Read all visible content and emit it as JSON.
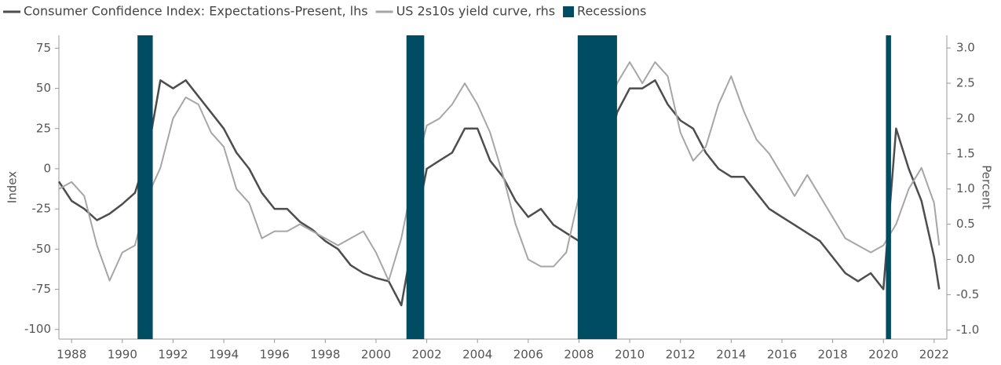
{
  "chart_data": {
    "type": "line",
    "x": [
      1987.5,
      1988.0,
      1988.5,
      1989.0,
      1989.5,
      1990.0,
      1990.5,
      1991.0,
      1991.5,
      1992.0,
      1992.5,
      1993.0,
      1993.5,
      1994.0,
      1994.5,
      1995.0,
      1995.5,
      1996.0,
      1996.5,
      1997.0,
      1997.5,
      1998.0,
      1998.5,
      1999.0,
      1999.5,
      2000.0,
      2000.5,
      2001.0,
      2001.5,
      2002.0,
      2002.5,
      2003.0,
      2003.5,
      2004.0,
      2004.5,
      2005.0,
      2005.5,
      2006.0,
      2006.5,
      2007.0,
      2007.5,
      2008.0,
      2008.5,
      2009.0,
      2009.5,
      2010.0,
      2010.5,
      2011.0,
      2011.5,
      2012.0,
      2012.5,
      2013.0,
      2013.5,
      2014.0,
      2014.5,
      2015.0,
      2015.5,
      2016.0,
      2016.5,
      2017.0,
      2017.5,
      2018.0,
      2018.5,
      2019.0,
      2019.5,
      2020.0,
      2020.5,
      2021.0,
      2021.5,
      2022.0,
      2022.2
    ],
    "series": [
      {
        "name": "Consumer Confidence Index: Expectations-Present, lhs",
        "color": "#4d4d4d",
        "axis": "y",
        "values": [
          -8,
          -20,
          -25,
          -32,
          -28,
          -22,
          -15,
          10,
          55,
          50,
          55,
          45,
          35,
          25,
          10,
          0,
          -15,
          -25,
          -25,
          -33,
          -38,
          -45,
          -50,
          -60,
          -65,
          -68,
          -70,
          -85,
          -40,
          0,
          5,
          10,
          25,
          25,
          5,
          -5,
          -20,
          -30,
          -25,
          -35,
          -40,
          -45,
          -15,
          0,
          35,
          50,
          50,
          55,
          40,
          30,
          25,
          10,
          0,
          -5,
          -5,
          -15,
          -25,
          -30,
          -35,
          -40,
          -45,
          -55,
          -65,
          -70,
          -65,
          -75,
          25,
          0,
          -20,
          -55,
          -75
        ]
      },
      {
        "name": "US 2s10s yield curve, rhs",
        "color": "#a6a6a6",
        "axis": "y2",
        "values": [
          1.0,
          1.1,
          0.9,
          0.2,
          -0.3,
          0.1,
          0.2,
          0.9,
          1.3,
          2.0,
          2.3,
          2.2,
          1.8,
          1.6,
          1.0,
          0.8,
          0.3,
          0.4,
          0.4,
          0.5,
          0.4,
          0.3,
          0.2,
          0.3,
          0.4,
          0.1,
          -0.3,
          0.3,
          1.2,
          1.9,
          2.0,
          2.2,
          2.5,
          2.2,
          1.8,
          1.2,
          0.5,
          0.0,
          -0.1,
          -0.1,
          0.1,
          0.9,
          1.5,
          1.8,
          2.5,
          2.8,
          2.5,
          2.8,
          2.6,
          1.8,
          1.4,
          1.6,
          2.2,
          2.6,
          2.1,
          1.7,
          1.5,
          1.2,
          0.9,
          1.2,
          0.9,
          0.6,
          0.3,
          0.2,
          0.1,
          0.2,
          0.5,
          1.0,
          1.3,
          0.8,
          0.2
        ]
      }
    ],
    "recessions": {
      "name": "Recessions",
      "color": "#004c63",
      "spans": [
        [
          1990.6,
          1991.2
        ],
        [
          2001.2,
          2001.9
        ],
        [
          2007.95,
          2009.5
        ],
        [
          2020.1,
          2020.3
        ]
      ]
    },
    "y_label": "Index",
    "y2_label": "Percent",
    "xlim": [
      1987.5,
      2022.5
    ],
    "xticks": [
      1988,
      1990,
      1992,
      1994,
      1996,
      1998,
      2000,
      2002,
      2004,
      2006,
      2008,
      2010,
      2012,
      2014,
      2016,
      2018,
      2020,
      2022
    ],
    "ylim": [
      -106,
      83
    ],
    "yticks": [
      75,
      50,
      25,
      0,
      -25,
      -50,
      -75,
      -100
    ],
    "y2lim": [
      -1.13,
      3.18
    ],
    "y2ticks": [
      {
        "value": 3,
        "label": "3.0"
      },
      {
        "value": 2.5,
        "label": "2.5"
      },
      {
        "value": 2,
        "label": "2.0"
      },
      {
        "value": 1.5,
        "label": "1.5"
      },
      {
        "value": 1,
        "label": "1.0"
      },
      {
        "value": 0.5,
        "label": "0.5"
      },
      {
        "value": 0,
        "label": "0.0"
      },
      {
        "value": -0.5,
        "label": "-0.5"
      },
      {
        "value": -1,
        "label": "-1.0"
      }
    ],
    "legend": "top-left"
  }
}
